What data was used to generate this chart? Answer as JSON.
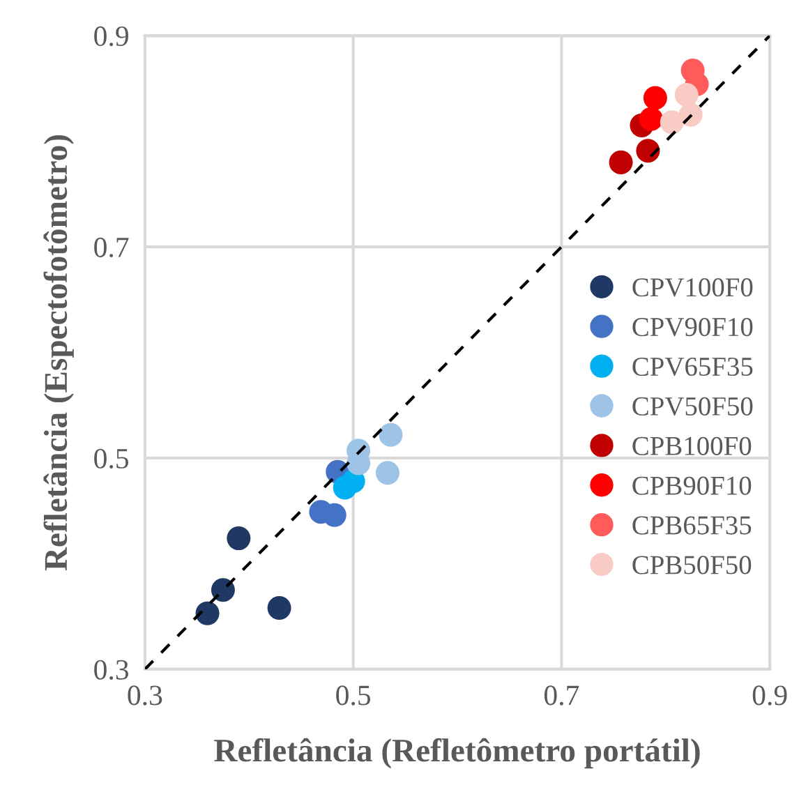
{
  "chart_data": {
    "type": "scatter",
    "xlabel": "Refletância (Refletômetro portátil)",
    "ylabel": "Refletância (Espectofotômetro)",
    "xlim": [
      0.3,
      0.9
    ],
    "ylim": [
      0.3,
      0.9
    ],
    "xticks": [
      0.3,
      0.5,
      0.7,
      0.9
    ],
    "yticks": [
      0.3,
      0.5,
      0.7,
      0.9
    ],
    "grid": true,
    "legend": "right",
    "marker": "circle",
    "series": [
      {
        "name": "CPV100F0",
        "color": "#1f3864",
        "x": [
          0.36,
          0.375,
          0.39,
          0.429
        ],
        "values": [
          0.353,
          0.375,
          0.424,
          0.358
        ]
      },
      {
        "name": "CPV90F10",
        "color": "#4472c4",
        "x": [
          0.469,
          0.482,
          0.485
        ],
        "values": [
          0.449,
          0.446,
          0.487
        ]
      },
      {
        "name": "CPV65F35",
        "color": "#00b0f0",
        "x": [
          0.492,
          0.5
        ],
        "values": [
          0.472,
          0.478
        ]
      },
      {
        "name": "CPV50F50",
        "color": "#9dc3e6",
        "x": [
          0.536,
          0.533,
          0.505,
          0.505
        ],
        "values": [
          0.522,
          0.486,
          0.507,
          0.495
        ]
      },
      {
        "name": "CPB100F0",
        "color": "#c00000",
        "x": [
          0.757,
          0.783,
          0.777
        ],
        "values": [
          0.78,
          0.791,
          0.815
        ]
      },
      {
        "name": "CPB90F10",
        "color": "#ff0000",
        "x": [
          0.79,
          0.786
        ],
        "values": [
          0.841,
          0.821
        ]
      },
      {
        "name": "CPB65F35",
        "color": "#ff5b5b",
        "x": [
          0.826,
          0.83
        ],
        "values": [
          0.867,
          0.854
        ]
      },
      {
        "name": "CPB50F50",
        "color": "#f8cbc4",
        "x": [
          0.82,
          0.824,
          0.806
        ],
        "values": [
          0.844,
          0.825,
          0.818
        ]
      },
      {
        "type": "line",
        "color": "#000000",
        "line_style": "dashed",
        "marker": "none",
        "x": [
          0.3,
          0.9
        ],
        "values": [
          0.3,
          0.9
        ]
      }
    ]
  }
}
